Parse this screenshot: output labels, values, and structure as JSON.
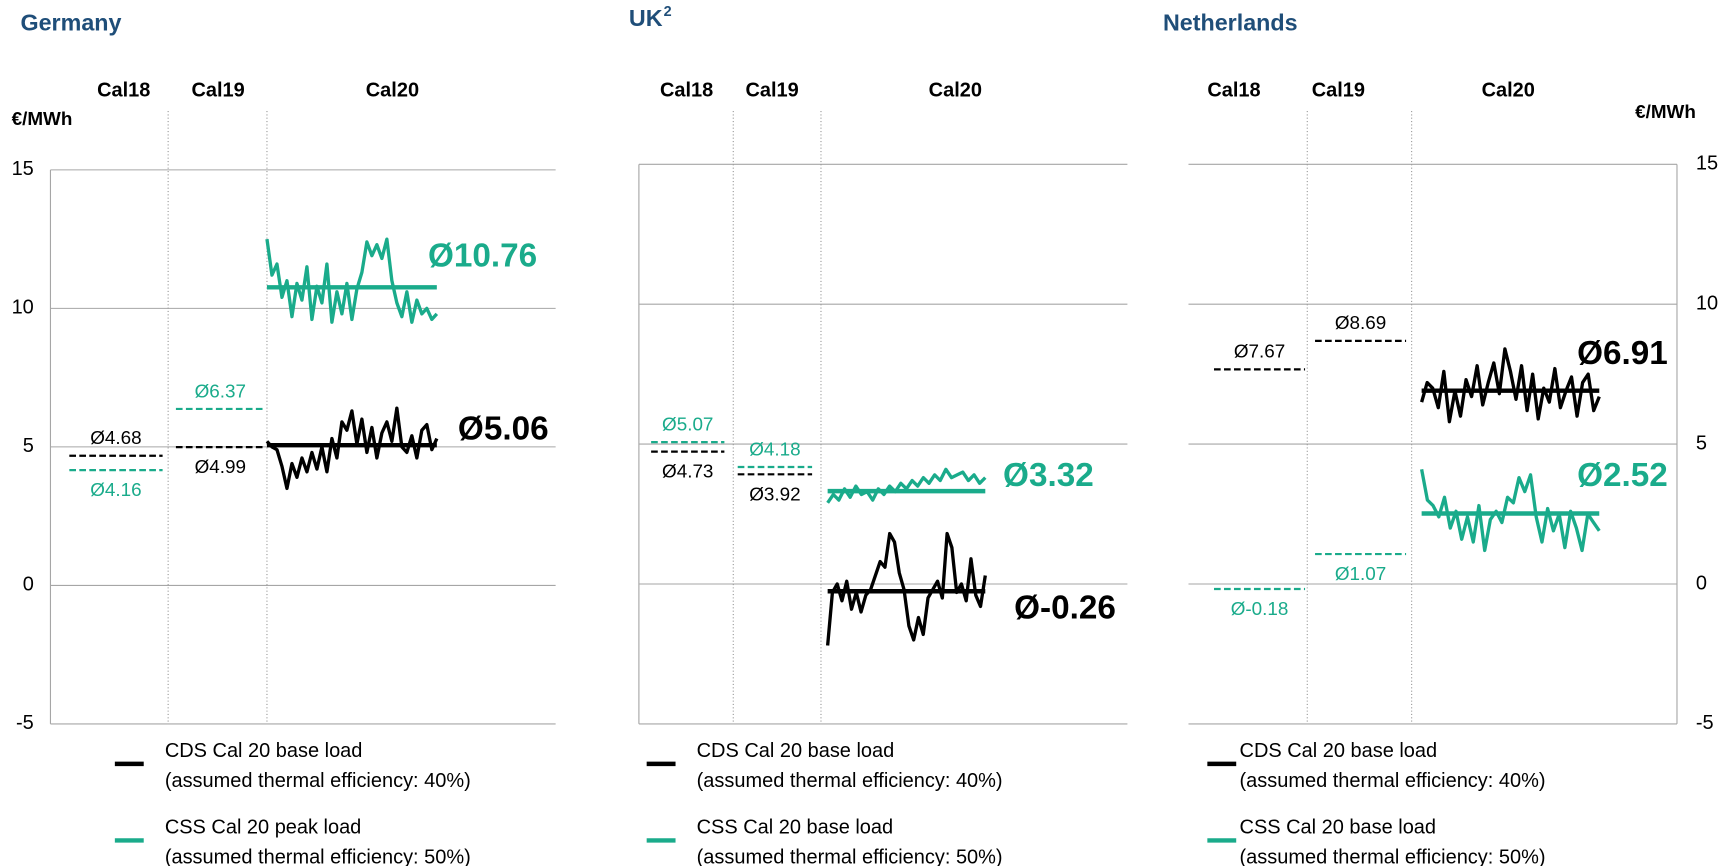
{
  "chart_data": [
    {
      "type": "line",
      "title": "Germany",
      "periods": [
        "Cal18",
        "Cal19",
        "Cal20"
      ],
      "unit": "€/MWh",
      "unit_side": "left",
      "ylim": [
        -5,
        15
      ],
      "yticks": [
        -5,
        0,
        5,
        10,
        15
      ],
      "ytick_side": "left",
      "series": [
        {
          "name": "CDS Cal 20 base load",
          "note": "(assumed thermal efficiency: 40%)",
          "color": "#000000",
          "period_averages": [
            4.68,
            4.99,
            5.06
          ],
          "period_labels": [
            "Ø4.68",
            "Ø4.99",
            "Ø5.06"
          ],
          "values": [
            5.2,
            5.0,
            4.9,
            4.3,
            3.5,
            4.4,
            3.9,
            4.6,
            4.1,
            4.8,
            4.2,
            5.0,
            4.1,
            5.3,
            4.6,
            5.9,
            5.6,
            6.3,
            5.1,
            6.0,
            4.8,
            5.7,
            4.6,
            5.5,
            5.9,
            5.2,
            6.4,
            5.0,
            4.8,
            5.4,
            4.6,
            5.6,
            5.8,
            4.9,
            5.3
          ]
        },
        {
          "name": "CSS Cal 20 peak load",
          "note": "(assumed thermal efficiency: 50%)",
          "color": "#1aab8b",
          "period_averages": [
            4.16,
            6.37,
            10.76
          ],
          "period_labels": [
            "Ø4.16",
            "Ø6.37",
            "Ø10.76"
          ],
          "values": [
            12.5,
            11.2,
            11.6,
            10.4,
            11.0,
            9.7,
            10.9,
            10.3,
            11.5,
            9.6,
            10.8,
            10.2,
            11.6,
            9.5,
            10.6,
            9.8,
            10.9,
            9.6,
            10.7,
            11.3,
            12.4,
            11.9,
            12.3,
            11.8,
            12.5,
            11.0,
            10.2,
            9.7,
            10.6,
            9.5,
            10.3,
            9.8,
            10.0,
            9.6,
            9.8
          ]
        }
      ]
    },
    {
      "type": "line",
      "title": "UK",
      "title_sup": "2",
      "periods": [
        "Cal18",
        "Cal19",
        "Cal20"
      ],
      "ylim": [
        -5,
        15
      ],
      "yticks": [
        -5,
        0,
        5,
        10,
        15
      ],
      "ytick_side": "none",
      "series": [
        {
          "name": "CDS Cal 20 base load",
          "note": "(assumed thermal efficiency: 40%)",
          "color": "#000000",
          "period_averages": [
            4.73,
            3.92,
            -0.26
          ],
          "period_labels": [
            "Ø4.73",
            "Ø3.92",
            "Ø-0.26"
          ],
          "values": [
            -2.2,
            -0.3,
            0.0,
            -0.6,
            0.1,
            -0.9,
            -0.3,
            -1.0,
            -0.4,
            -0.2,
            0.3,
            0.8,
            0.6,
            1.8,
            1.5,
            0.4,
            -0.2,
            -1.5,
            -2.0,
            -1.2,
            -1.8,
            -0.5,
            -0.2,
            0.1,
            -0.5,
            1.8,
            1.3,
            -0.3,
            0.0,
            -0.6,
            0.9,
            -0.4,
            -0.8,
            0.3
          ]
        },
        {
          "name": "CSS Cal 20 base load",
          "note": "(assumed thermal efficiency: 50%)",
          "color": "#1aab8b",
          "period_averages": [
            5.07,
            4.18,
            3.32
          ],
          "period_labels": [
            "Ø5.07",
            "Ø4.18",
            "Ø3.32"
          ],
          "values": [
            2.9,
            3.2,
            3.0,
            3.4,
            3.1,
            3.5,
            3.2,
            3.3,
            3.0,
            3.4,
            3.2,
            3.5,
            3.3,
            3.6,
            3.4,
            3.7,
            3.5,
            3.8,
            3.6,
            3.9,
            3.7,
            4.1,
            3.8,
            3.9,
            4.0,
            3.7,
            3.9,
            3.6,
            3.8
          ]
        }
      ]
    },
    {
      "type": "line",
      "title": "Netherlands",
      "periods": [
        "Cal18",
        "Cal19",
        "Cal20"
      ],
      "unit": "€/MWh",
      "unit_side": "right",
      "ylim": [
        -5,
        15
      ],
      "yticks": [
        -5,
        0,
        5,
        10,
        15
      ],
      "ytick_side": "right",
      "series": [
        {
          "name": "CDS Cal 20 base load",
          "note": "(assumed thermal efficiency: 40%)",
          "color": "#000000",
          "period_averages": [
            7.67,
            8.69,
            6.91
          ],
          "period_labels": [
            "Ø7.67",
            "Ø8.69",
            "Ø6.91"
          ],
          "values": [
            6.5,
            7.2,
            7.0,
            6.3,
            7.6,
            5.8,
            6.9,
            6.0,
            7.3,
            6.7,
            7.8,
            6.4,
            7.2,
            7.9,
            6.8,
            8.4,
            7.6,
            6.6,
            7.8,
            6.2,
            7.5,
            5.9,
            7.0,
            6.5,
            7.7,
            6.3,
            6.9,
            7.4,
            6.0,
            7.2,
            7.5,
            6.2,
            6.7
          ]
        },
        {
          "name": "CSS Cal 20 base load",
          "note": "(assumed thermal efficiency: 50%)",
          "color": "#1aab8b",
          "period_averages": [
            -0.18,
            1.07,
            2.52
          ],
          "period_labels": [
            "Ø-0.18",
            "Ø1.07",
            "Ø2.52"
          ],
          "values": [
            4.1,
            3.0,
            2.8,
            2.4,
            3.1,
            2.0,
            2.6,
            1.6,
            2.4,
            1.5,
            2.8,
            1.2,
            2.3,
            2.6,
            2.2,
            3.1,
            2.9,
            3.8,
            3.3,
            3.9,
            2.4,
            1.5,
            2.7,
            1.9,
            2.5,
            1.3,
            2.6,
            2.0,
            1.2,
            2.5,
            2.2,
            1.9
          ]
        }
      ]
    }
  ]
}
